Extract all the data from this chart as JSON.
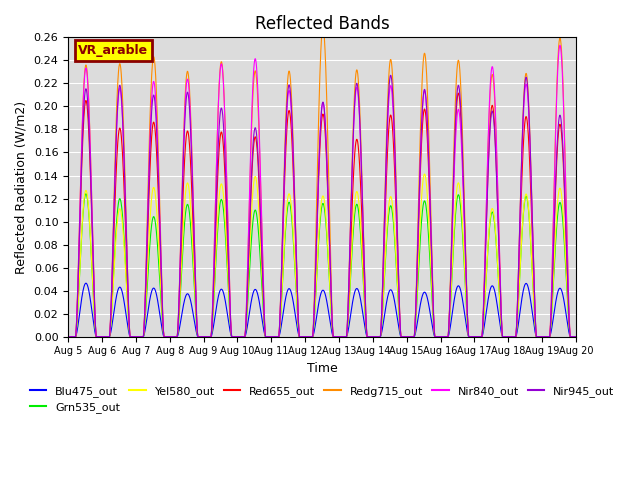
{
  "title": "Reflected Bands",
  "xlabel": "Time",
  "ylabel": "Reflected Radiation (W/m2)",
  "ylim": [
    0.0,
    0.26
  ],
  "yticks": [
    0.0,
    0.02,
    0.04,
    0.06,
    0.08,
    0.1,
    0.12,
    0.14,
    0.16,
    0.18,
    0.2,
    0.22,
    0.24,
    0.26
  ],
  "annotation_text": "VR_arable",
  "background_color": "#dcdcdc",
  "series": [
    {
      "name": "Blu475_out",
      "color": "#0000ff",
      "peak_scale": 0.042
    },
    {
      "name": "Grn535_out",
      "color": "#00ee00",
      "peak_scale": 0.115
    },
    {
      "name": "Yel580_out",
      "color": "#ffff00",
      "peak_scale": 0.125
    },
    {
      "name": "Red655_out",
      "color": "#ff0000",
      "peak_scale": 0.19
    },
    {
      "name": "Redg715_out",
      "color": "#ff8c00",
      "peak_scale": 0.242
    },
    {
      "name": "Nir840_out",
      "color": "#ff00ff",
      "peak_scale": 0.22
    },
    {
      "name": "Nir945_out",
      "color": "#9400d3",
      "peak_scale": 0.215
    }
  ],
  "xtick_positions": [
    0,
    1,
    2,
    3,
    4,
    5,
    6,
    7,
    8,
    9,
    10,
    11,
    12,
    13,
    14,
    15
  ],
  "xtick_labels": [
    "Aug 5",
    "Aug 6",
    "Aug 7",
    "Aug 8",
    "Aug 9",
    "Aug 10",
    "Aug 11",
    "Aug 12",
    "Aug 13",
    "Aug 14",
    "Aug 15",
    "Aug 16",
    "Aug 17",
    "Aug 18",
    "Aug 19",
    "Aug 20"
  ],
  "num_days": 15,
  "points_per_day": 144
}
